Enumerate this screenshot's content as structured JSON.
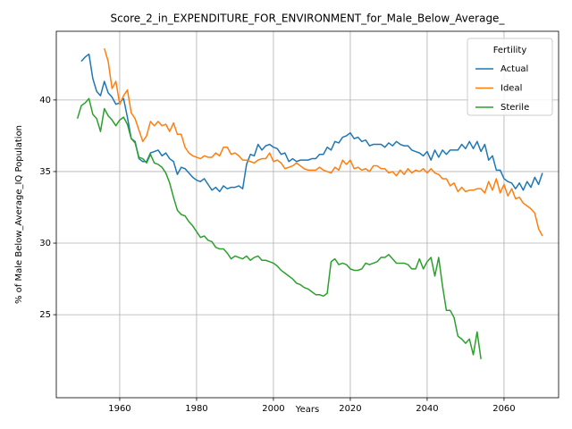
{
  "chart_data": {
    "type": "line",
    "title": "Score_2_in_EXPENDITURE_FOR_ENVIRONMENT_for_Male_Below_Average_",
    "xlabel": "Years",
    "ylabel": "% of Male Below_Average_IQ Population",
    "legend_title": "Fertility",
    "legend_loc": "upper right",
    "grid": true,
    "xlim": [
      1943.5,
      2074.2
    ],
    "ylim": [
      19.2,
      44.8
    ],
    "xticks": [
      1960,
      1980,
      2000,
      2020,
      2040,
      2060
    ],
    "yticks": [
      25,
      30,
      35,
      40
    ],
    "x": [
      1949,
      1950,
      1951,
      1952,
      1953,
      1954,
      1955,
      1956,
      1957,
      1958,
      1959,
      1960,
      1961,
      1962,
      1963,
      1964,
      1965,
      1966,
      1967,
      1968,
      1969,
      1970,
      1971,
      1972,
      1973,
      1974,
      1975,
      1976,
      1977,
      1978,
      1979,
      1980,
      1981,
      1982,
      1983,
      1984,
      1985,
      1986,
      1987,
      1988,
      1989,
      1990,
      1991,
      1992,
      1993,
      1994,
      1995,
      1996,
      1997,
      1998,
      1999,
      2000,
      2001,
      2002,
      2003,
      2004,
      2005,
      2006,
      2007,
      2008,
      2009,
      2010,
      2011,
      2012,
      2013,
      2014,
      2015,
      2016,
      2017,
      2018,
      2019,
      2020,
      2021,
      2022,
      2023,
      2024,
      2025,
      2026,
      2027,
      2028,
      2029,
      2030,
      2031,
      2032,
      2033,
      2034,
      2035,
      2036,
      2037,
      2038,
      2039,
      2040,
      2041,
      2042,
      2043,
      2044,
      2045,
      2046,
      2047,
      2048,
      2049,
      2050,
      2051,
      2052,
      2053,
      2054,
      2055,
      2056,
      2057,
      2058,
      2059,
      2060,
      2061,
      2062,
      2063,
      2064,
      2065,
      2066,
      2067,
      2068,
      2069,
      2070
    ],
    "series": [
      {
        "name": "Actual",
        "color": "#1f77b4",
        "values": [
          null,
          42.7,
          43.0,
          43.2,
          41.5,
          40.6,
          40.3,
          41.3,
          40.5,
          40.2,
          39.7,
          39.8,
          40.1,
          38.8,
          37.3,
          37.1,
          35.9,
          35.7,
          35.7,
          36.3,
          36.4,
          36.5,
          36.1,
          36.3,
          35.9,
          35.7,
          34.8,
          35.3,
          35.2,
          34.9,
          34.6,
          34.4,
          34.3,
          34.5,
          34.1,
          33.7,
          33.9,
          33.6,
          34.0,
          33.8,
          33.9,
          33.9,
          34.0,
          33.8,
          35.5,
          36.2,
          36.1,
          36.9,
          36.5,
          36.8,
          36.9,
          36.7,
          36.6,
          36.2,
          36.3,
          35.7,
          35.9,
          35.7,
          35.8,
          35.8,
          35.8,
          35.9,
          35.9,
          36.2,
          36.2,
          36.7,
          36.5,
          37.1,
          37.0,
          37.4,
          37.5,
          37.7,
          37.3,
          37.4,
          37.1,
          37.2,
          36.8,
          36.9,
          36.9,
          36.9,
          36.7,
          37.0,
          36.8,
          37.1,
          36.9,
          36.8,
          36.8,
          36.5,
          36.4,
          36.3,
          36.1,
          36.4,
          35.8,
          36.5,
          36.0,
          36.5,
          36.2,
          36.5,
          36.5,
          36.5,
          36.9,
          36.6,
          37.1,
          36.6,
          37.1,
          36.4,
          36.9,
          35.8,
          36.1,
          35.1,
          35.1,
          34.5,
          34.3,
          34.2,
          33.8,
          34.2,
          33.7,
          34.3,
          33.9,
          34.6,
          34.1,
          34.9
        ]
      },
      {
        "name": "Ideal",
        "color": "#ff7f0e",
        "values": [
          null,
          null,
          null,
          null,
          null,
          null,
          null,
          43.6,
          42.7,
          40.8,
          41.3,
          39.7,
          40.3,
          40.7,
          39.1,
          38.7,
          37.9,
          37.1,
          37.5,
          38.5,
          38.2,
          38.5,
          38.2,
          38.3,
          37.8,
          38.4,
          37.6,
          37.6,
          36.7,
          36.3,
          36.1,
          36.0,
          35.9,
          36.1,
          36.0,
          36.0,
          36.3,
          36.1,
          36.7,
          36.7,
          36.2,
          36.3,
          36.1,
          35.8,
          35.8,
          35.7,
          35.6,
          35.8,
          35.9,
          35.9,
          36.3,
          35.7,
          35.8,
          35.6,
          35.2,
          35.3,
          35.4,
          35.6,
          35.4,
          35.2,
          35.1,
          35.1,
          35.1,
          35.3,
          35.1,
          35.0,
          34.9,
          35.3,
          35.1,
          35.8,
          35.5,
          35.8,
          35.2,
          35.3,
          35.1,
          35.2,
          35.0,
          35.4,
          35.4,
          35.2,
          35.2,
          34.9,
          35.0,
          34.7,
          35.1,
          34.8,
          35.2,
          34.9,
          35.1,
          35.0,
          35.2,
          34.9,
          35.2,
          34.9,
          34.8,
          34.5,
          34.5,
          34.0,
          34.2,
          33.6,
          33.9,
          33.6,
          33.7,
          33.7,
          33.8,
          33.8,
          33.5,
          34.3,
          33.7,
          34.5,
          33.5,
          34.1,
          33.3,
          33.8,
          33.1,
          33.2,
          32.8,
          32.6,
          32.4,
          32.1,
          31.0,
          30.5
        ]
      },
      {
        "name": "Sterile",
        "color": "#2ca02c",
        "values": [
          38.7,
          39.6,
          39.8,
          40.1,
          39.0,
          38.7,
          37.8,
          39.4,
          38.9,
          38.6,
          38.2,
          38.6,
          38.8,
          38.3,
          37.3,
          37.0,
          36.0,
          35.9,
          35.6,
          36.2,
          35.6,
          35.5,
          35.3,
          34.9,
          34.2,
          33.2,
          32.3,
          32.0,
          31.9,
          31.5,
          31.2,
          30.8,
          30.4,
          30.5,
          30.2,
          30.1,
          29.7,
          29.6,
          29.6,
          29.3,
          28.9,
          29.1,
          29.0,
          28.9,
          29.1,
          28.8,
          29.0,
          29.1,
          28.8,
          28.8,
          28.7,
          28.6,
          28.4,
          28.1,
          27.9,
          27.7,
          27.5,
          27.2,
          27.1,
          26.9,
          26.8,
          26.6,
          26.4,
          26.4,
          26.3,
          26.5,
          28.7,
          28.9,
          28.5,
          28.6,
          28.5,
          28.2,
          28.1,
          28.1,
          28.2,
          28.6,
          28.5,
          28.6,
          28.7,
          29.0,
          29.0,
          29.2,
          28.9,
          28.6,
          28.6,
          28.6,
          28.5,
          28.2,
          28.2,
          28.9,
          28.2,
          28.7,
          29.0,
          27.7,
          29.0,
          27.0,
          25.3,
          25.3,
          24.8,
          23.5,
          23.3,
          23.0,
          23.3,
          22.2,
          23.8,
          21.9,
          null,
          null,
          null,
          null,
          null,
          null,
          null,
          null,
          null,
          null,
          null,
          null,
          null,
          null,
          null,
          null
        ]
      }
    ]
  }
}
